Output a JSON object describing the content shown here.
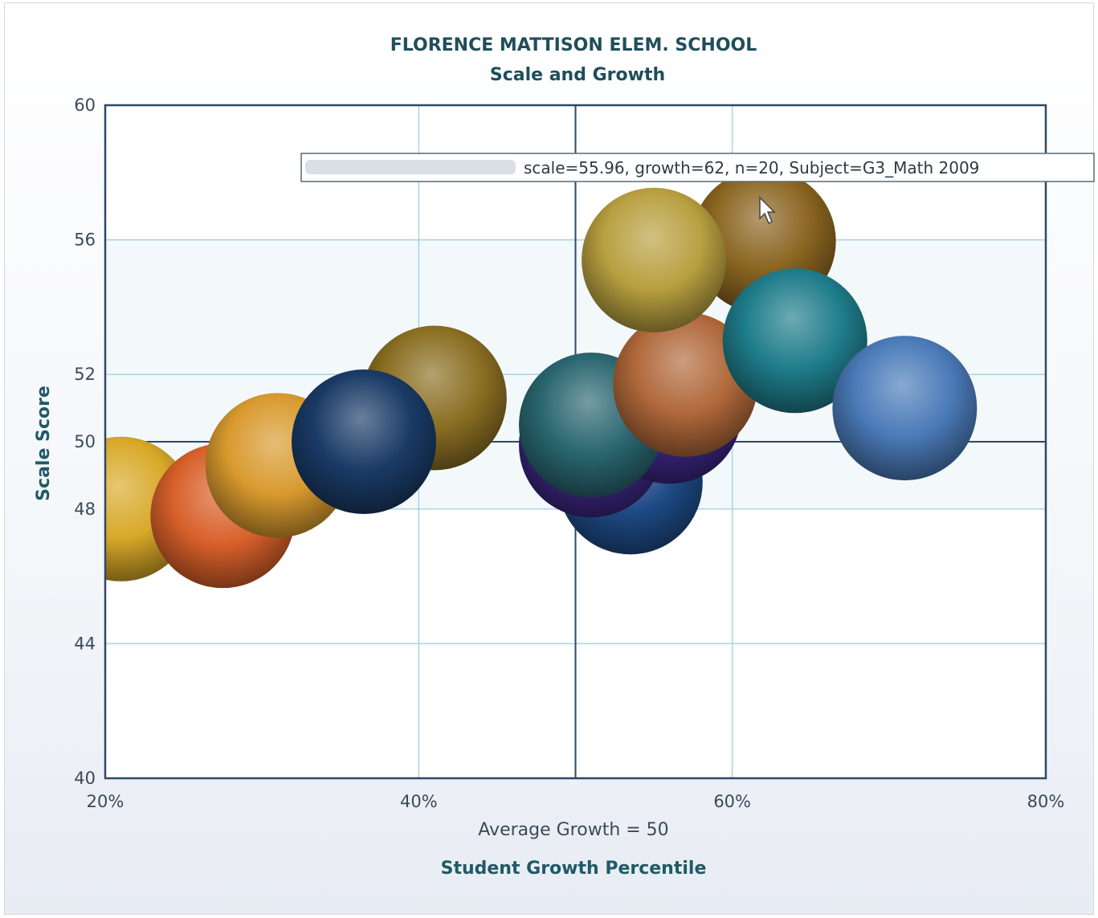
{
  "chart_data": {
    "type": "bubble",
    "title": "FLORENCE MATTISON ELEM. SCHOOL",
    "subtitle": "Scale and Growth",
    "xlabel": "Student Growth Percentile",
    "ylabel": "Scale Score",
    "x_reference_label": "Average Growth = 50",
    "x_reference": 50,
    "y_reference": 50,
    "xlim": [
      20,
      80
    ],
    "ylim": [
      40,
      60
    ],
    "x_ticks": [
      20,
      40,
      60,
      80
    ],
    "x_tick_labels": [
      "20%",
      "40%",
      "60%",
      "80%"
    ],
    "y_ticks": [
      40,
      44,
      48,
      50,
      52,
      56,
      60
    ],
    "y_tick_labels": [
      "40",
      "44",
      "48",
      "50",
      "52",
      "56",
      "60"
    ],
    "y_gridlines": [
      44,
      48,
      52,
      56
    ],
    "x_gridlines": [
      40,
      60
    ],
    "grid": true,
    "tooltip": {
      "text": "scale=55.96, growth=62, n=20, Subject=G3_Math 2009"
    },
    "points": [
      {
        "x": 21,
        "y": 48.0,
        "color": "#d8a828"
      },
      {
        "x": 27.5,
        "y": 47.8,
        "color": "#d8602a"
      },
      {
        "x": 31,
        "y": 49.3,
        "color": "#d89a2e"
      },
      {
        "x": 41,
        "y": 51.3,
        "color": "#8a6e22"
      },
      {
        "x": 36.5,
        "y": 50.0,
        "color": "#1a3a66"
      },
      {
        "x": 53.5,
        "y": 48.8,
        "color": "#1e4a86"
      },
      {
        "x": 51,
        "y": 49.9,
        "color": "#3a2680"
      },
      {
        "x": 56,
        "y": 50.9,
        "color": "#3a2680"
      },
      {
        "x": 51,
        "y": 50.5,
        "color": "#2a6670"
      },
      {
        "x": 57,
        "y": 51.7,
        "color": "#b0683a"
      },
      {
        "x": 62,
        "y": 55.96,
        "color": "#8a6420"
      },
      {
        "x": 55,
        "y": 55.4,
        "color": "#b8a040"
      },
      {
        "x": 64,
        "y": 53.0,
        "color": "#1e7c8a"
      },
      {
        "x": 71,
        "y": 51.0,
        "color": "#4a7ab8"
      }
    ]
  }
}
